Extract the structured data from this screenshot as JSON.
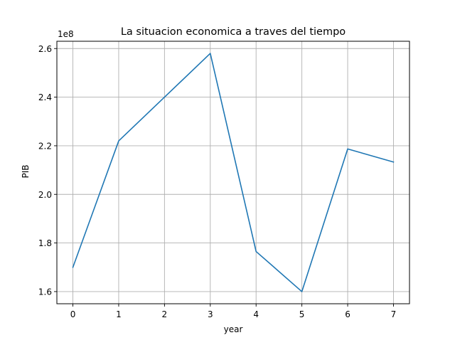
{
  "chart_data": {
    "type": "line",
    "title": "La situacion economica a traves del tiempo",
    "xlabel": "year",
    "ylabel": "PIB",
    "y_offset_label": "1e8",
    "x": [
      0,
      1,
      2,
      3,
      4,
      5,
      6,
      7
    ],
    "series": [
      {
        "values": [
          170000000,
          222000000,
          240000000,
          258000000,
          176500000,
          160000000,
          218700000,
          213300000
        ]
      }
    ],
    "xlim": [
      -0.35,
      7.35
    ],
    "ylim": [
      155000000,
      263000000
    ],
    "x_ticks": [
      0,
      1,
      2,
      3,
      4,
      5,
      6,
      7
    ],
    "x_tick_labels": [
      "0",
      "1",
      "2",
      "3",
      "4",
      "5",
      "6",
      "7"
    ],
    "y_ticks": [
      160000000,
      180000000,
      200000000,
      220000000,
      240000000,
      260000000
    ],
    "y_tick_labels": [
      "1.6",
      "1.8",
      "2.0",
      "2.2",
      "2.4",
      "2.6"
    ],
    "grid": true,
    "line_color": "#1f77b4"
  }
}
